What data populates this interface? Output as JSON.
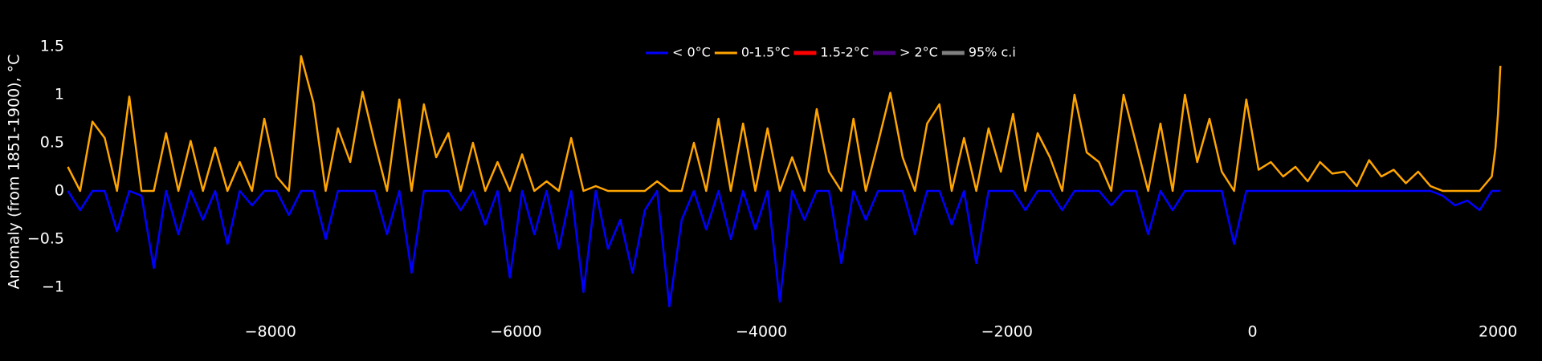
{
  "chart_data": {
    "type": "line",
    "y_label": "Anomaly (from 1851-1900), °C",
    "xlim": [
      -9660,
      2025
    ],
    "ylim": [
      -1.25,
      1.65
    ],
    "xticks": [
      {
        "value": -8000,
        "label": "−8000"
      },
      {
        "value": -6000,
        "label": "−6000"
      },
      {
        "value": -4000,
        "label": "−4000"
      },
      {
        "value": -2000,
        "label": "−2000"
      },
      0,
      2000
    ],
    "yticks": [
      {
        "value": -1,
        "label": "−1"
      },
      {
        "value": -0.5,
        "label": "−0.5"
      },
      0,
      0.5,
      1,
      1.5
    ],
    "grid": false,
    "x": [
      -9650,
      -9550,
      -9450,
      -9350,
      -9250,
      -9150,
      -9050,
      -8950,
      -8850,
      -8750,
      -8650,
      -8550,
      -8450,
      -8350,
      -8250,
      -8150,
      -8050,
      -7950,
      -7850,
      -7750,
      -7650,
      -7550,
      -7450,
      -7350,
      -7250,
      -7150,
      -7050,
      -6950,
      -6850,
      -6750,
      -6650,
      -6550,
      -6450,
      -6350,
      -6250,
      -6150,
      -6050,
      -5950,
      -5850,
      -5750,
      -5650,
      -5550,
      -5450,
      -5350,
      -5250,
      -5150,
      -5050,
      -4950,
      -4850,
      -4750,
      -4650,
      -4550,
      -4450,
      -4350,
      -4250,
      -4150,
      -4050,
      -3950,
      -3850,
      -3750,
      -3650,
      -3550,
      -3450,
      -3350,
      -3250,
      -3150,
      -3050,
      -2950,
      -2850,
      -2750,
      -2650,
      -2550,
      -2450,
      -2350,
      -2250,
      -2150,
      -2050,
      -1950,
      -1850,
      -1750,
      -1650,
      -1550,
      -1450,
      -1350,
      -1250,
      -1150,
      -1050,
      -950,
      -850,
      -750,
      -650,
      -550,
      -450,
      -350,
      -250,
      -150,
      -50,
      50,
      150,
      250,
      350,
      450,
      550,
      650,
      750,
      850,
      950,
      1050,
      1150,
      1250,
      1350,
      1450,
      1550,
      1650,
      1750,
      1850,
      1950,
      1980,
      2000,
      2020
    ],
    "series": [
      {
        "name": "< 0°C",
        "color": "#0000ff",
        "values": [
          0,
          -0.2,
          0,
          0,
          -0.42,
          0,
          -0.05,
          -0.8,
          0,
          -0.45,
          0,
          -0.3,
          0,
          -0.55,
          0,
          -0.15,
          0,
          0,
          -0.25,
          0,
          0,
          -0.5,
          0,
          0,
          0,
          0,
          -0.45,
          0,
          -0.85,
          0,
          0,
          0,
          -0.2,
          0,
          -0.35,
          0,
          -0.9,
          0,
          -0.45,
          0,
          -0.6,
          0,
          -1.05,
          0,
          -0.6,
          -0.3,
          -0.85,
          -0.2,
          0,
          -1.2,
          -0.3,
          0,
          -0.4,
          0,
          -0.5,
          0,
          -0.4,
          0,
          -1.15,
          0,
          -0.3,
          0,
          0,
          -0.75,
          0,
          -0.3,
          0,
          0,
          0,
          -0.45,
          0,
          0,
          -0.35,
          0,
          -0.75,
          0,
          0,
          0,
          -0.2,
          0,
          0,
          -0.2,
          0,
          0,
          0,
          -0.15,
          0,
          0,
          -0.45,
          0,
          -0.2,
          0,
          0,
          0,
          0,
          -0.55,
          0,
          0,
          0,
          0,
          0,
          0,
          0,
          0,
          0,
          0,
          0,
          0,
          0,
          0,
          0,
          0,
          -0.05,
          -0.15,
          -0.1,
          -0.2,
          0,
          0,
          0,
          0
        ]
      },
      {
        "name": "0-1.5°C",
        "color": "#ffa500",
        "values": [
          0.25,
          0,
          0.72,
          0.55,
          0,
          0.98,
          0,
          0,
          0.6,
          0,
          0.52,
          0,
          0.45,
          0,
          0.3,
          0,
          0.75,
          0.15,
          0,
          1.4,
          0.92,
          0,
          0.65,
          0.3,
          1.03,
          0.5,
          0,
          0.95,
          0,
          0.9,
          0.35,
          0.6,
          0,
          0.5,
          0,
          0.3,
          0,
          0.38,
          0,
          0.1,
          0,
          0.55,
          0,
          0.05,
          0,
          0,
          0,
          0,
          0.1,
          0,
          0,
          0.5,
          0,
          0.75,
          0,
          0.7,
          0,
          0.65,
          0,
          0.35,
          0,
          0.85,
          0.2,
          0,
          0.75,
          0,
          0.5,
          1.02,
          0.35,
          0,
          0.7,
          0.9,
          0,
          0.55,
          0,
          0.65,
          0.2,
          0.8,
          0,
          0.6,
          0.35,
          0,
          1.0,
          0.4,
          0.3,
          0,
          1.0,
          0.5,
          0,
          0.7,
          0,
          1.0,
          0.3,
          0.75,
          0.2,
          0,
          0.95,
          0.22,
          0.3,
          0.15,
          0.25,
          0.1,
          0.3,
          0.18,
          0.2,
          0.05,
          0.32,
          0.15,
          0.22,
          0.08,
          0.2,
          0.05,
          0,
          0,
          0,
          0,
          0.15,
          0.45,
          0.8,
          1.3
        ]
      },
      {
        "name": "1.5-2°C",
        "color": "#ff0000"
      },
      {
        "name": "> 2°C",
        "color": "#4b0082"
      },
      {
        "name": "95% c.i",
        "color": "#808080"
      }
    ]
  }
}
